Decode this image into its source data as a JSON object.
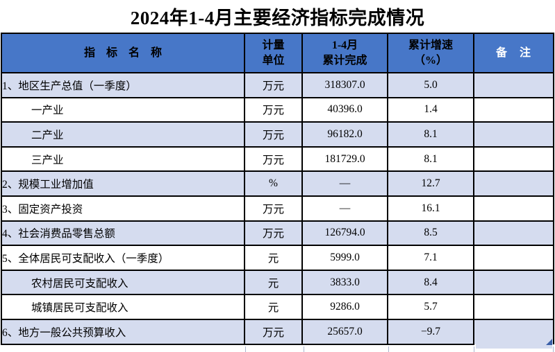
{
  "title": "2024年1-4月主要经济指标完成情况",
  "table": {
    "headers": {
      "indicator": "指　标　名　称",
      "unit": "计量\n单位",
      "cumulative": "1-4月\n累计完成",
      "growth": "累计增速\n（%）",
      "remark": "备　注"
    },
    "rows": [
      {
        "indicator": "1、地区生产总值（一季度）",
        "unit": "万元",
        "value": "318307.0",
        "growth": "5.0",
        "remark": "",
        "indent": false,
        "shaded": true
      },
      {
        "indicator": "一产业",
        "unit": "万元",
        "value": "40396.0",
        "growth": "1.4",
        "remark": "",
        "indent": true,
        "shaded": false
      },
      {
        "indicator": "二产业",
        "unit": "万元",
        "value": "96182.0",
        "growth": "8.1",
        "remark": "",
        "indent": true,
        "shaded": true
      },
      {
        "indicator": "三产业",
        "unit": "万元",
        "value": "181729.0",
        "growth": "8.1",
        "remark": "",
        "indent": true,
        "shaded": false
      },
      {
        "indicator": "2、规模工业增加值",
        "unit": "%",
        "value": "—",
        "growth": "12.7",
        "remark": "",
        "indent": false,
        "shaded": true
      },
      {
        "indicator": "3、固定资产投资",
        "unit": "万元",
        "value": "—",
        "growth": "16.1",
        "remark": "",
        "indent": false,
        "shaded": false
      },
      {
        "indicator": "4、社会消费品零售总额",
        "unit": "万元",
        "value": "126794.0",
        "growth": "8.5",
        "remark": "",
        "indent": false,
        "shaded": true
      },
      {
        "indicator": "5、全体居民可支配收入（一季度）",
        "unit": "元",
        "value": "5999.0",
        "growth": "7.1",
        "remark": "",
        "indent": false,
        "shaded": false
      },
      {
        "indicator": "农村居民可支配收入",
        "unit": "元",
        "value": "3833.0",
        "growth": "8.4",
        "remark": "",
        "indent": true,
        "shaded": true
      },
      {
        "indicator": "城镇居民可支配收入",
        "unit": "元",
        "value": "9286.0",
        "growth": "5.7",
        "remark": "",
        "indent": true,
        "shaded": false
      },
      {
        "indicator": "6、地方一般公共预算收入",
        "unit": "万元",
        "value": "25657.0",
        "growth": "−9.7",
        "remark": "",
        "indent": false,
        "shaded": true
      }
    ]
  },
  "colors": {
    "header_bg": "#4777C8",
    "row_shaded": "#D5DCEF",
    "border": "#000000",
    "remark_header_text": "#FFFFFF",
    "fill_handle": "#3A5FA8"
  }
}
